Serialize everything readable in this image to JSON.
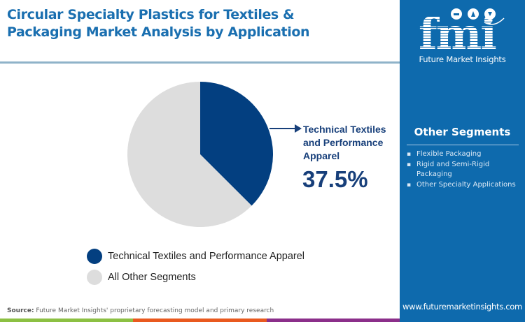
{
  "header": {
    "title_line1": "Circular Specialty Plastics for Textiles &",
    "title_line2": "Packaging Market Analysis by Application"
  },
  "side_panel": {
    "logo_letters": "fmi",
    "logo_text": "Future Market Insights",
    "segments_title": "Other Segments",
    "segments": [
      "Flexible Packaging",
      "Rigid and Semi-Rigid Packaging",
      "Other Specialty Applications"
    ],
    "url": "www.futuremarketinsights.com"
  },
  "callout": {
    "label": "Technical Textiles and Performance Apparel",
    "value": "37.5%"
  },
  "legend": [
    {
      "label": "Technical Textiles and Performance Apparel",
      "color": "#033f80"
    },
    {
      "label": "All Other Segments",
      "color": "#dddddd"
    }
  ],
  "footer": {
    "source_label": "Source:",
    "source_text": " Future Market Insights' proprietary forecasting model and primary research"
  },
  "colors": {
    "title": "#1a6fb0",
    "panel": "#0e6aad",
    "highlight": "#033f80",
    "other": "#dddddd",
    "bar": [
      "#8cc043",
      "#e9591f",
      "#8b2f8a"
    ]
  },
  "chart_data": {
    "type": "pie",
    "title": "Circular Specialty Plastics for Textiles & Packaging Market Analysis by Application",
    "categories": [
      "Technical Textiles and Performance Apparel",
      "All Other Segments"
    ],
    "values": [
      37.5,
      62.5
    ],
    "colors": [
      "#033f80",
      "#dddddd"
    ],
    "start_angle_deg": 90,
    "direction": "clockwise",
    "annotations": [
      {
        "target": "Technical Textiles and Performance Apparel",
        "text": "37.5%"
      }
    ],
    "legend_position": "bottom-left"
  }
}
